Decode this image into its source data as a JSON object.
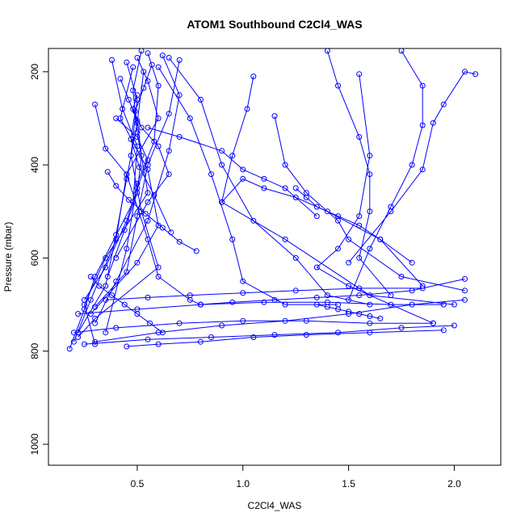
{
  "chart_data": {
    "type": "scatter",
    "title": "ATOM1 Southbound C2Cl4_WAS",
    "xlabel": "C2Cl4_WAS",
    "ylabel": "Pressure (mbar)",
    "xlim": [
      0.08,
      2.22
    ],
    "ylim": [
      1045,
      150
    ],
    "y_reversed": true,
    "x_ticks": [
      0.5,
      1.0,
      1.5,
      2.0
    ],
    "x_tick_labels": [
      "0.5",
      "1.0",
      "1.5",
      "2.0"
    ],
    "y_ticks": [
      200,
      400,
      600,
      800,
      1000
    ],
    "y_tick_labels": [
      "200",
      "400",
      "600",
      "800",
      "1000"
    ],
    "grid": false,
    "series_color": "#0000ff",
    "marker": "open-circle",
    "series": [
      {
        "x": [
          0.5,
          0.55,
          0.6,
          0.45,
          0.4,
          0.28,
          0.2
        ],
        "y": [
          170,
          220,
          300,
          420,
          560,
          690,
          780
        ]
      },
      {
        "x": [
          0.52,
          0.48,
          0.5,
          0.55,
          0.35,
          0.25,
          0.3
        ],
        "y": [
          155,
          240,
          330,
          460,
          600,
          700,
          785
        ]
      },
      {
        "x": [
          0.45,
          0.5,
          0.47,
          0.52,
          0.6,
          0.3,
          0.22
        ],
        "y": [
          180,
          260,
          380,
          500,
          620,
          730,
          770
        ]
      },
      {
        "x": [
          0.38,
          0.43,
          0.5,
          0.48,
          0.3,
          0.25,
          0.18
        ],
        "y": [
          175,
          280,
          360,
          480,
          640,
          710,
          795
        ]
      },
      {
        "x": [
          0.55,
          0.6,
          0.58,
          0.5,
          0.45,
          0.35
        ],
        "y": [
          160,
          230,
          350,
          440,
          580,
          760
        ]
      },
      {
        "x": [
          0.62,
          0.7,
          0.65,
          0.55,
          0.4,
          0.3
        ],
        "y": [
          165,
          250,
          370,
          520,
          650,
          740
        ]
      },
      {
        "x": [
          0.48,
          0.42,
          0.55,
          0.6,
          0.5,
          0.28
        ],
        "y": [
          190,
          300,
          410,
          530,
          610,
          720
        ]
      },
      {
        "x": [
          0.53,
          0.5,
          0.45,
          0.4,
          0.35,
          0.22
        ],
        "y": [
          200,
          310,
          430,
          550,
          660,
          760
        ]
      },
      {
        "x": [
          0.7,
          0.65,
          0.55,
          0.5,
          0.45,
          0.3
        ],
        "y": [
          175,
          290,
          400,
          510,
          630,
          705
        ]
      },
      {
        "x": [
          0.3,
          0.35,
          0.45,
          0.55,
          0.6,
          0.75,
          0.8
        ],
        "y": [
          270,
          365,
          420,
          560,
          640,
          690,
          700
        ]
      },
      {
        "x": [
          0.6,
          0.75,
          0.85,
          0.95,
          1.0,
          1.2,
          1.45
        ],
        "y": [
          190,
          300,
          420,
          560,
          650,
          700,
          700
        ]
      },
      {
        "x": [
          0.65,
          0.8,
          0.9,
          1.05,
          1.25,
          1.4,
          1.6
        ],
        "y": [
          170,
          260,
          400,
          520,
          600,
          680,
          700
        ]
      },
      {
        "x": [
          1.05,
          1.02,
          0.95,
          0.9,
          1.2,
          1.6,
          2.0
        ],
        "y": [
          210,
          280,
          380,
          480,
          560,
          680,
          700
        ]
      },
      {
        "x": [
          1.15,
          1.2,
          1.3,
          1.45,
          1.5,
          1.75,
          2.05
        ],
        "y": [
          295,
          400,
          460,
          520,
          560,
          640,
          670
        ]
      },
      {
        "x": [
          1.4,
          1.45,
          1.55,
          1.6,
          1.6,
          1.55,
          1.7
        ],
        "y": [
          155,
          230,
          340,
          420,
          500,
          600,
          680
        ]
      },
      {
        "x": [
          1.75,
          1.85,
          1.85,
          1.8,
          1.7,
          1.6,
          1.5
        ],
        "y": [
          155,
          230,
          315,
          400,
          490,
          580,
          690
        ]
      },
      {
        "x": [
          2.1,
          2.05,
          1.95,
          1.9,
          1.85,
          1.7,
          1.5
        ],
        "y": [
          205,
          200,
          270,
          310,
          410,
          500,
          610
        ]
      },
      {
        "x": [
          1.55,
          1.6,
          1.55,
          1.45,
          1.35,
          1.5,
          1.9
        ],
        "y": [
          205,
          380,
          510,
          580,
          620,
          660,
          740
        ]
      },
      {
        "x": [
          0.2,
          0.4,
          0.7,
          1.0,
          1.3,
          1.6,
          1.9
        ],
        "y": [
          760,
          750,
          740,
          735,
          735,
          740,
          740
        ]
      },
      {
        "x": [
          0.25,
          0.55,
          0.85,
          1.15,
          1.45,
          1.75,
          2.0
        ],
        "y": [
          785,
          775,
          770,
          765,
          760,
          750,
          745
        ]
      },
      {
        "x": [
          0.3,
          0.6,
          0.9,
          1.2,
          1.5,
          1.8,
          2.05
        ],
        "y": [
          780,
          760,
          745,
          735,
          720,
          700,
          690
        ]
      },
      {
        "x": [
          0.22,
          0.5,
          0.8,
          1.1,
          1.4,
          1.7,
          1.95
        ],
        "y": [
          720,
          710,
          700,
          695,
          695,
          700,
          700
        ]
      },
      {
        "x": [
          0.35,
          0.55,
          0.75,
          1.0,
          1.25,
          1.55,
          1.85
        ],
        "y": [
          690,
          685,
          680,
          675,
          670,
          665,
          665
        ]
      },
      {
        "x": [
          0.45,
          0.6,
          0.8,
          1.05,
          1.3,
          1.6,
          1.95
        ],
        "y": [
          790,
          785,
          780,
          770,
          765,
          760,
          755
        ]
      },
      {
        "x": [
          0.8,
          0.95,
          1.15,
          1.35,
          1.55,
          1.8,
          2.05
        ],
        "y": [
          700,
          695,
          690,
          685,
          680,
          670,
          645
        ]
      },
      {
        "x": [
          0.9,
          1.0,
          1.1,
          1.25,
          1.4,
          1.65,
          1.85
        ],
        "y": [
          480,
          430,
          450,
          470,
          500,
          560,
          660
        ]
      },
      {
        "x": [
          0.55,
          0.7,
          0.9,
          1.0,
          1.1,
          1.2,
          1.35
        ],
        "y": [
          320,
          340,
          370,
          410,
          430,
          450,
          510
        ]
      },
      {
        "x": [
          0.4,
          0.5,
          0.55,
          0.5,
          0.45,
          0.35,
          0.25
        ],
        "y": [
          300,
          340,
          390,
          450,
          520,
          620,
          690
        ]
      },
      {
        "x": [
          0.5,
          0.48,
          0.52,
          0.6,
          0.65,
          0.55,
          0.4
        ],
        "y": [
          250,
          280,
          320,
          360,
          420,
          480,
          600
        ]
      },
      {
        "x": [
          0.42,
          0.46,
          0.5,
          0.52,
          0.5,
          0.44,
          0.36
        ],
        "y": [
          215,
          260,
          305,
          380,
          460,
          540,
          640
        ]
      },
      {
        "x": [
          0.57,
          0.53,
          0.49,
          0.47,
          0.51,
          0.58,
          0.66
        ],
        "y": [
          185,
          235,
          285,
          345,
          405,
          465,
          545
        ]
      },
      {
        "x": [
          0.36,
          0.4,
          0.46,
          0.54,
          0.62,
          0.7,
          0.78
        ],
        "y": [
          415,
          445,
          475,
          505,
          535,
          565,
          585
        ]
      },
      {
        "x": [
          0.28,
          0.32,
          0.38,
          0.44,
          0.5,
          0.56,
          0.62
        ],
        "y": [
          640,
          660,
          680,
          700,
          720,
          740,
          760
        ]
      },
      {
        "x": [
          1.25,
          1.3,
          1.35,
          1.45,
          1.55,
          1.65,
          1.8
        ],
        "y": [
          450,
          470,
          490,
          510,
          530,
          560,
          610
        ]
      },
      {
        "x": [
          1.35,
          1.4,
          1.45,
          1.5,
          1.55,
          1.6,
          1.65
        ],
        "y": [
          700,
          705,
          710,
          715,
          720,
          725,
          730
        ]
      }
    ]
  }
}
